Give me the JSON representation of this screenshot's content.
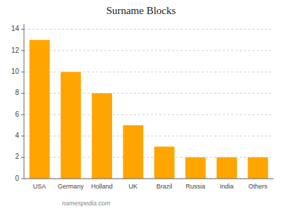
{
  "chart_data": {
    "type": "bar",
    "title": "Surname Blocks",
    "categories": [
      "USA",
      "Germany",
      "Holland",
      "UK",
      "Brazil",
      "Russia",
      "India",
      "Others"
    ],
    "values": [
      13,
      10,
      8,
      5,
      3,
      2,
      2,
      2
    ],
    "color": "#FFA500",
    "ylim": [
      0,
      14.5
    ],
    "yticks": [
      0,
      2,
      4,
      6,
      8,
      10,
      12,
      14
    ],
    "grid": true,
    "annotations": [
      "namespedia.com"
    ]
  }
}
